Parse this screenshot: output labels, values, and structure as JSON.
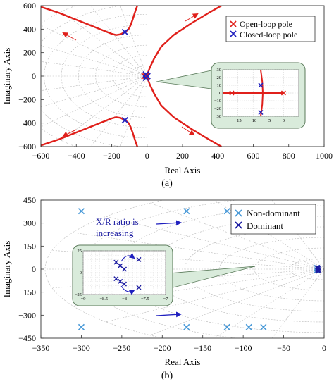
{
  "chart_data": [
    {
      "type": "scatter",
      "panel_label": "(a)",
      "xlabel": "Real Axis",
      "ylabel": "Imaginary Axis",
      "xlim": [
        -600,
        1000
      ],
      "ylim": [
        -600,
        600
      ],
      "x_ticks": [
        -600,
        -400,
        -200,
        0,
        200,
        400,
        600,
        800,
        1000
      ],
      "y_ticks": [
        -600,
        -400,
        -200,
        0,
        200,
        400,
        600
      ],
      "grid": "s-plane (damping rays and natural-frequency arcs)",
      "legend": {
        "position": "top-right",
        "entries": [
          {
            "label": "Open-loop pole",
            "marker": "x",
            "color": "#e0201b"
          },
          {
            "label": "Closed-loop pole",
            "marker": "x",
            "color": "#1f1fbf"
          }
        ]
      },
      "open_loop_poles": [
        {
          "x": 0,
          "y": 0
        },
        {
          "x": -5,
          "y": 0
        },
        {
          "x": -15,
          "y": 0
        }
      ],
      "closed_loop_poles": [
        {
          "x": -125,
          "y": 375
        },
        {
          "x": -125,
          "y": -375
        },
        {
          "x": -7,
          "y": 14
        },
        {
          "x": -7,
          "y": -14
        },
        {
          "x": 2,
          "y": 0
        }
      ],
      "root_locus_branches": [
        [
          [
            -600,
            590
          ],
          [
            -500,
            540
          ],
          [
            -400,
            480
          ],
          [
            -300,
            420
          ],
          [
            -250,
            390
          ],
          [
            -200,
            360
          ],
          [
            -175,
            350
          ],
          [
            -150,
            356
          ],
          [
            -125,
            375
          ],
          [
            -110,
            392
          ],
          [
            -100,
            410
          ],
          [
            -90,
            445
          ],
          [
            -80,
            490
          ],
          [
            -65,
            560
          ],
          [
            -55,
            600
          ]
        ],
        [
          [
            -600,
            -590
          ],
          [
            -500,
            -540
          ],
          [
            -400,
            -480
          ],
          [
            -300,
            -420
          ],
          [
            -250,
            -390
          ],
          [
            -200,
            -360
          ],
          [
            -175,
            -350
          ],
          [
            -150,
            -356
          ],
          [
            -125,
            -375
          ],
          [
            -110,
            -392
          ],
          [
            -100,
            -410
          ],
          [
            -90,
            -445
          ],
          [
            -80,
            -490
          ],
          [
            -65,
            -560
          ],
          [
            -55,
            -600
          ]
        ],
        [
          [
            0,
            0
          ],
          [
            5,
            30
          ],
          [
            15,
            70
          ],
          [
            40,
            150
          ],
          [
            80,
            250
          ],
          [
            150,
            350
          ],
          [
            250,
            450
          ],
          [
            350,
            540
          ],
          [
            420,
            600
          ]
        ],
        [
          [
            0,
            0
          ],
          [
            5,
            -30
          ],
          [
            15,
            -70
          ],
          [
            40,
            -150
          ],
          [
            80,
            -250
          ],
          [
            150,
            -350
          ],
          [
            250,
            -450
          ],
          [
            350,
            -540
          ],
          [
            420,
            -600
          ]
        ]
      ],
      "inset": {
        "xlim": [
          -20,
          5
        ],
        "ylim": [
          -30,
          30
        ],
        "x_ticks": [
          -15,
          -10,
          -5,
          0
        ],
        "y_ticks": [
          -30,
          -20,
          -10,
          0,
          10,
          20,
          30
        ],
        "open_loop_poles": [
          {
            "x": 0,
            "y": 0
          },
          {
            "x": -17,
            "y": 0
          }
        ],
        "closed_loop_poles": [
          {
            "x": -7.5,
            "y": 10
          },
          {
            "x": -7.5,
            "y": -25
          }
        ],
        "locus": [
          [
            [
              -20,
              0
            ],
            [
              0,
              0
            ]
          ],
          [
            [
              -7.5,
              -30
            ],
            [
              -7,
              -15
            ],
            [
              -6.8,
              0
            ],
            [
              -7,
              15
            ],
            [
              -7.5,
              30
            ]
          ]
        ]
      }
    },
    {
      "type": "scatter",
      "panel_label": "(b)",
      "xlabel": "Real Axis",
      "ylabel": "Imaginary Axis",
      "xlim": [
        -350,
        0
      ],
      "ylim": [
        -450,
        450
      ],
      "x_ticks": [
        -350,
        -300,
        -250,
        -200,
        -150,
        -100,
        -50,
        0
      ],
      "y_ticks": [
        -450,
        -300,
        -150,
        0,
        150,
        300,
        450
      ],
      "grid": "s-plane (damping rays and natural-frequency arcs)",
      "legend": {
        "position": "top-right",
        "entries": [
          {
            "label": "Non-dominant",
            "marker": "x",
            "color": "#4a9ad8"
          },
          {
            "label": "Dominant",
            "marker": "x",
            "color": "#1a1aa0"
          }
        ]
      },
      "annotation": "X/R ratio is\nincreasing",
      "non_dominant_poles": [
        {
          "x": -300,
          "y": 378
        },
        {
          "x": -170,
          "y": 378
        },
        {
          "x": -120,
          "y": 378
        },
        {
          "x": -93,
          "y": 378
        },
        {
          "x": -75,
          "y": 378
        },
        {
          "x": -300,
          "y": -378
        },
        {
          "x": -170,
          "y": -378
        },
        {
          "x": -120,
          "y": -378
        },
        {
          "x": -93,
          "y": -378
        },
        {
          "x": -75,
          "y": -378
        },
        {
          "x": -9,
          "y": 8
        },
        {
          "x": -9,
          "y": -8
        }
      ],
      "dominant_poles": [
        {
          "x": -8,
          "y": 12
        },
        {
          "x": -7,
          "y": 8
        },
        {
          "x": -8,
          "y": 3
        },
        {
          "x": -7,
          "y": -3
        },
        {
          "x": -8,
          "y": -8
        },
        {
          "x": -7,
          "y": -12
        }
      ],
      "inset": {
        "xlim": [
          -9,
          -7
        ],
        "ylim": [
          -25,
          25
        ],
        "x_ticks": [
          -9,
          -8.5,
          -8,
          -7.5,
          -7
        ],
        "y_ticks": [
          -25,
          0,
          25
        ],
        "dominant_poles": [
          {
            "x": -8.2,
            "y": 12
          },
          {
            "x": -8.1,
            "y": 8
          },
          {
            "x": -8.0,
            "y": 4
          },
          {
            "x": -7.65,
            "y": 15
          },
          {
            "x": -8.2,
            "y": -7
          },
          {
            "x": -8.1,
            "y": -10
          },
          {
            "x": -8.0,
            "y": -13
          },
          {
            "x": -7.65,
            "y": -17
          }
        ]
      }
    }
  ]
}
